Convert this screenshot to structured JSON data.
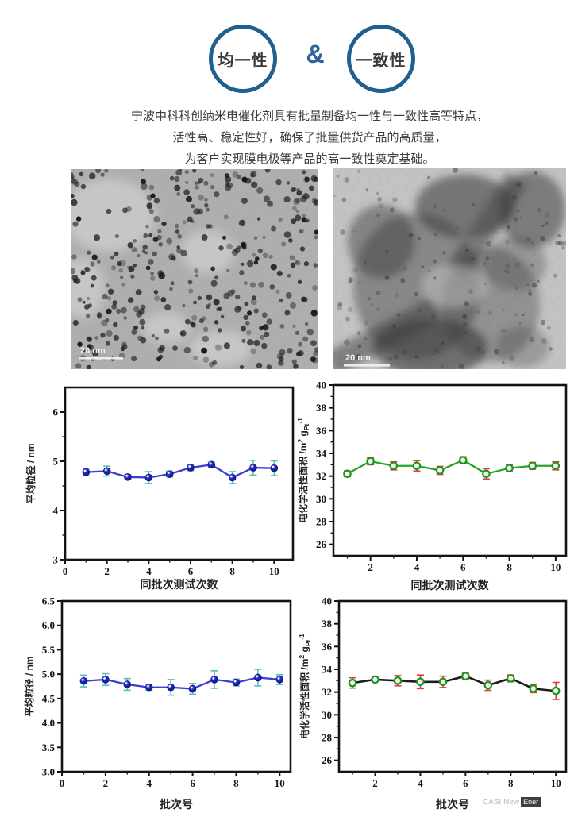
{
  "header": {
    "badge1": "均一性",
    "ampersand": "&",
    "badge2": "一致性"
  },
  "description": {
    "lines": [
      "宁波中科科创纳米电催化剂具有批量制备均一性与一致性高等特点，",
      "活性高、稳定性好，确保了批量供货产品的高质量，",
      "为客户实现膜电极等产品的高一致性奠定基础。"
    ]
  },
  "tem_images": [
    {
      "name": "nanoparticle-tem",
      "scale_bar": "20 nm"
    },
    {
      "name": "aggregate-tem",
      "scale_bar": "20 nm"
    }
  ],
  "watermark": {
    "prefix": "CASI New",
    "highlight": "Ener"
  },
  "colors": {
    "badge_ring": "#20608f",
    "ampersand": "#2a639c",
    "blue_line": "#3a3fd4",
    "blue_marker": "#2326c0",
    "cyan_error": "#55bfbb",
    "green_line": "#27a527",
    "green_marker": "#1d921d",
    "red_error": "#e23b3b",
    "black_line": "#1c1c1c"
  },
  "chart_data": [
    {
      "type": "line",
      "title": "平均粒径-同批次重复测试",
      "xlabel": "同批次测试次数",
      "ylabel": "平均粒径 / nm",
      "x": [
        1,
        2,
        3,
        4,
        5,
        6,
        7,
        8,
        9,
        10
      ],
      "values": [
        4.78,
        4.8,
        4.68,
        4.67,
        4.74,
        4.87,
        4.93,
        4.67,
        4.87,
        4.86
      ],
      "errors": [
        0.07,
        0.1,
        0.05,
        0.12,
        0.06,
        0.06,
        0.05,
        0.12,
        0.15,
        0.15
      ],
      "xlim": [
        0,
        10.9
      ],
      "ylim": [
        3,
        6.5
      ],
      "xticks": [
        0,
        2,
        4,
        6,
        8,
        10
      ],
      "xtick_labels": [
        "0",
        "2",
        "4",
        "6",
        "8",
        "10"
      ],
      "xticks_minor": [
        1,
        3,
        5,
        7,
        9
      ],
      "yticks": [
        3,
        4,
        5,
        6
      ],
      "ytick_labels": [
        "3",
        "4",
        "5",
        "6"
      ],
      "yticks_minor": [
        3.5,
        4.5,
        5.5
      ],
      "grid": false,
      "legend": null,
      "line_color": "#3a3fd4",
      "marker": "sphere",
      "marker_color": "#2326c0",
      "error_color": "#55bfbb"
    },
    {
      "type": "line",
      "title": "电化学活性面积-同批次重复测试",
      "xlabel": "同批次测试次数",
      "ylabel": "电化学活性面积 /m^2^ g~Pt~^-1^",
      "x": [
        1,
        2,
        3,
        4,
        5,
        6,
        7,
        8,
        9,
        10
      ],
      "values": [
        32.2,
        33.3,
        32.9,
        32.9,
        32.5,
        33.4,
        32.2,
        32.7,
        32.9,
        32.9
      ],
      "errors": [
        0.25,
        0.3,
        0.35,
        0.45,
        0.35,
        0.3,
        0.45,
        0.3,
        0.3,
        0.35
      ],
      "xlim": [
        0.4,
        10.45
      ],
      "ylim": [
        25,
        40
      ],
      "xticks": [
        2,
        4,
        6,
        8,
        10
      ],
      "xtick_labels": [
        "2",
        "4",
        "6",
        "8",
        "10"
      ],
      "xticks_minor": [
        1,
        3,
        5,
        7,
        9
      ],
      "yticks": [
        26,
        28,
        30,
        32,
        34,
        36,
        38,
        40
      ],
      "ytick_labels": [
        "26",
        "28",
        "30",
        "32",
        "34",
        "36",
        "38",
        "40"
      ],
      "yticks_minor": [
        27,
        29,
        31,
        33,
        35,
        37,
        39
      ],
      "grid": false,
      "legend": null,
      "line_color": "#27a527",
      "marker": "ring",
      "marker_color": "#1d921d",
      "error_color": "#e23b3b"
    },
    {
      "type": "line",
      "title": "平均粒径-不同批次",
      "xlabel": "批次号",
      "ylabel": "平均粒径 / nm",
      "x": [
        1,
        2,
        3,
        4,
        5,
        6,
        7,
        8,
        9,
        10
      ],
      "values": [
        4.86,
        4.89,
        4.79,
        4.73,
        4.73,
        4.7,
        4.89,
        4.83,
        4.93,
        4.89
      ],
      "errors": [
        0.12,
        0.12,
        0.12,
        0.06,
        0.16,
        0.11,
        0.18,
        0.07,
        0.17,
        0.1
      ],
      "xlim": [
        0,
        10.5
      ],
      "ylim": [
        3.0,
        6.5
      ],
      "xticks": [
        0,
        2,
        4,
        6,
        8,
        10
      ],
      "xtick_labels": [
        "0",
        "2",
        "4",
        "6",
        "8",
        "10"
      ],
      "xticks_minor": [
        1,
        3,
        5,
        7,
        9
      ],
      "yticks": [
        3.0,
        3.5,
        4.0,
        4.5,
        5.0,
        5.5,
        6.0,
        6.5
      ],
      "ytick_labels": [
        "3.0",
        "3.5",
        "4.0",
        "4.5",
        "5.0",
        "5.5",
        "6.0",
        "6.5"
      ],
      "yticks_minor": [],
      "grid": false,
      "legend": null,
      "line_color": "#3a3fd4",
      "marker": "sphere",
      "marker_color": "#2326c0",
      "error_color": "#55bfbb"
    },
    {
      "type": "line",
      "title": "电化学活性面积-不同批次",
      "xlabel": "批次号",
      "ylabel": "电化学活性面积 /m^2^ g~Pt~^-1^",
      "x": [
        1,
        2,
        3,
        4,
        5,
        6,
        7,
        8,
        9,
        10
      ],
      "values": [
        32.8,
        33.1,
        33.0,
        32.9,
        32.9,
        33.4,
        32.6,
        33.2,
        32.3,
        32.1
      ],
      "errors": [
        0.45,
        0.15,
        0.45,
        0.6,
        0.5,
        0.25,
        0.45,
        0.3,
        0.35,
        0.75
      ],
      "xlim": [
        0.4,
        10.45
      ],
      "ylim": [
        25,
        40
      ],
      "xticks": [
        2,
        4,
        6,
        8,
        10
      ],
      "xtick_labels": [
        "2",
        "4",
        "6",
        "8",
        "10"
      ],
      "xticks_minor": [
        1,
        3,
        5,
        7,
        9
      ],
      "yticks": [
        26,
        28,
        30,
        32,
        34,
        36,
        38,
        40
      ],
      "ytick_labels": [
        "26",
        "28",
        "30",
        "32",
        "34",
        "36",
        "38",
        "40"
      ],
      "yticks_minor": [
        27,
        29,
        31,
        33,
        35,
        37,
        39
      ],
      "grid": false,
      "legend": null,
      "line_color": "#1c1c1c",
      "marker": "ring",
      "marker_color": "#1d921d",
      "error_color": "#e23b3b"
    }
  ]
}
